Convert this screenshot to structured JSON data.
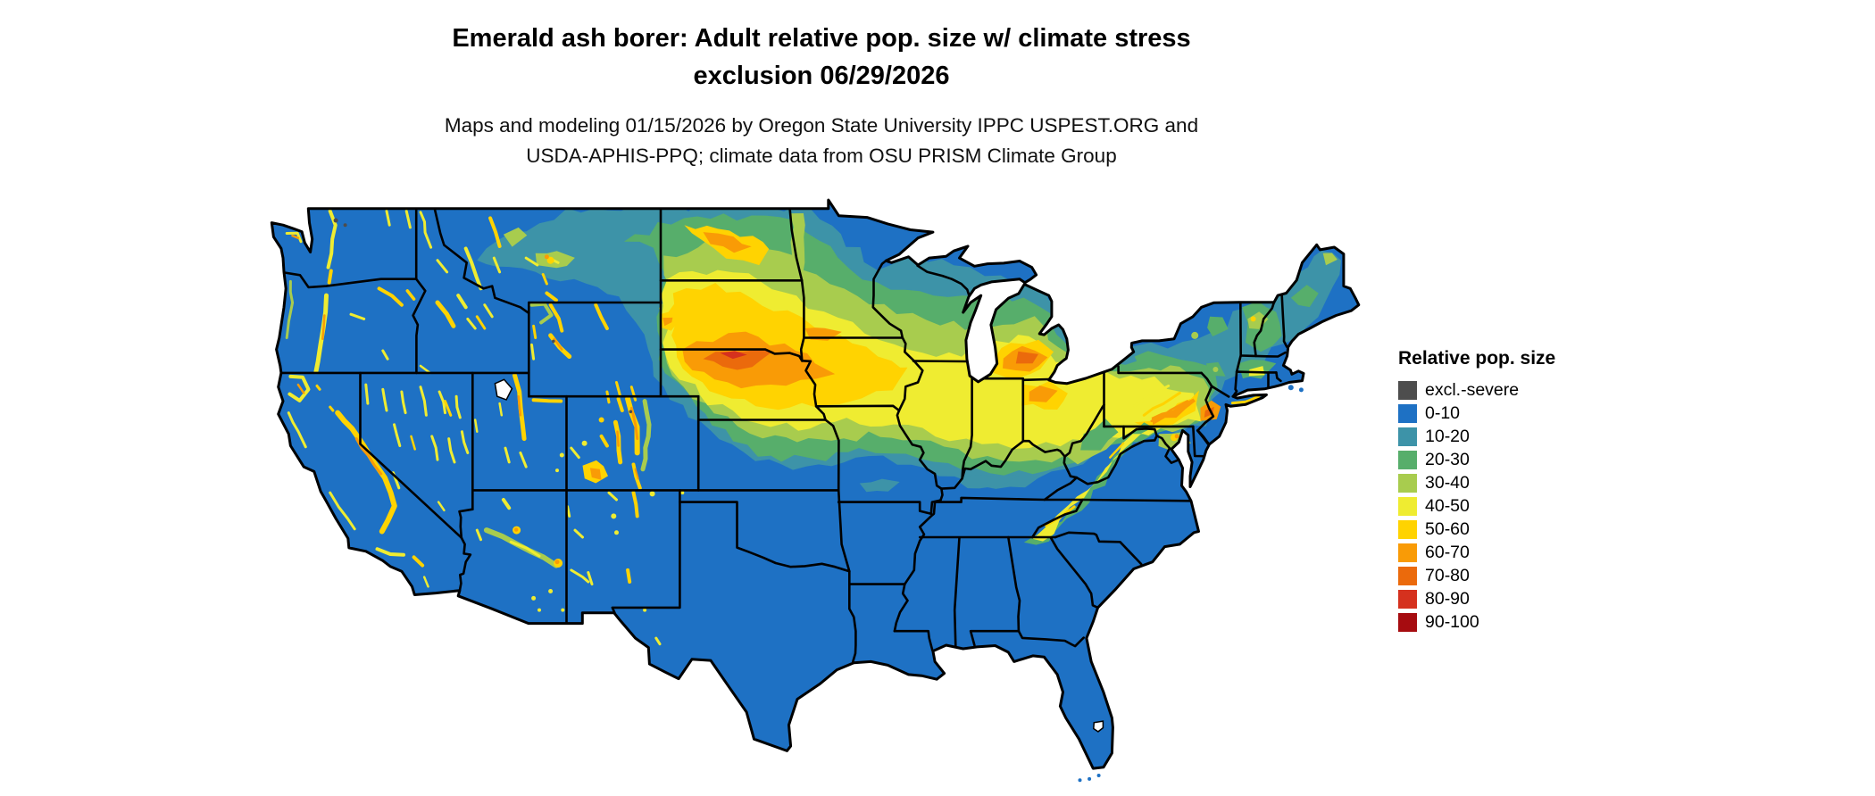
{
  "title": {
    "line1": "Emerald ash borer: Adult relative pop. size w/ climate stress",
    "line2": "exclusion 06/29/2026"
  },
  "subtitle": {
    "line1": "Maps and modeling 01/15/2026 by Oregon State University IPPC USPEST.ORG and",
    "line2": "USDA-APHIS-PPQ; climate data from OSU PRISM Climate Group"
  },
  "legend": {
    "title": "Relative pop. size",
    "items": [
      {
        "label": "excl.-severe",
        "color": "#4D4D4D"
      },
      {
        "label": "0-10",
        "color": "#1E71C4"
      },
      {
        "label": "10-20",
        "color": "#3D93A8"
      },
      {
        "label": "20-30",
        "color": "#57AE6B"
      },
      {
        "label": "30-40",
        "color": "#A8CC4E"
      },
      {
        "label": "40-50",
        "color": "#EFEC31"
      },
      {
        "label": "50-60",
        "color": "#FFD301"
      },
      {
        "label": "60-70",
        "color": "#F99B06"
      },
      {
        "label": "70-80",
        "color": "#EB6A0C"
      },
      {
        "label": "80-90",
        "color": "#D5311E"
      },
      {
        "label": "90-100",
        "color": "#A60C10"
      }
    ]
  },
  "map": {
    "background": "#FFFFFF",
    "water": "#FFFFFF",
    "outline_color": "#000000",
    "state_border_color": "#000000"
  }
}
